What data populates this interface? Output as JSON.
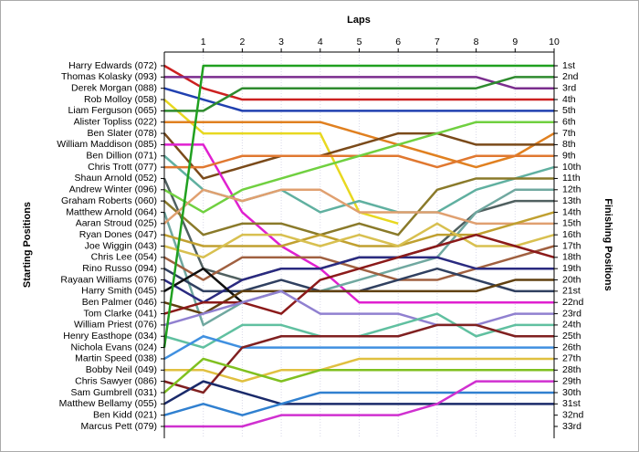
{
  "chart_data": {
    "type": "line",
    "title": "Laps",
    "ylabel": "Starting Positions",
    "y2label": "Finishing Positions",
    "x": [
      0,
      1,
      2,
      3,
      4,
      5,
      6,
      7,
      8,
      9,
      10
    ],
    "xlim": [
      0,
      10
    ],
    "xticks": [
      1,
      2,
      3,
      4,
      5,
      6,
      7,
      8,
      9,
      10
    ],
    "ylim": [
      1,
      33
    ],
    "inverted": true,
    "grid": true,
    "y2ticks": [
      {
        "value": 1,
        "label": "1st"
      },
      {
        "value": 2,
        "label": "2nd"
      },
      {
        "value": 3,
        "label": "3rd"
      },
      {
        "value": 4,
        "label": "4th"
      },
      {
        "value": 5,
        "label": "5th"
      },
      {
        "value": 6,
        "label": "6th"
      },
      {
        "value": 7,
        "label": "7th"
      },
      {
        "value": 8,
        "label": "8th"
      },
      {
        "value": 9,
        "label": "9th"
      },
      {
        "value": 10,
        "label": "10th"
      },
      {
        "value": 11,
        "label": "11th"
      },
      {
        "value": 12,
        "label": "12th"
      },
      {
        "value": 13,
        "label": "13th"
      },
      {
        "value": 14,
        "label": "14th"
      },
      {
        "value": 15,
        "label": "15th"
      },
      {
        "value": 16,
        "label": "16th"
      },
      {
        "value": 17,
        "label": "17th"
      },
      {
        "value": 18,
        "label": "18th"
      },
      {
        "value": 19,
        "label": "19th"
      },
      {
        "value": 20,
        "label": "20th"
      },
      {
        "value": 21,
        "label": "21st"
      },
      {
        "value": 22,
        "label": "22nd"
      },
      {
        "value": 23,
        "label": "23rd"
      },
      {
        "value": 24,
        "label": "24th"
      },
      {
        "value": 25,
        "label": "25th"
      },
      {
        "value": 26,
        "label": "26th"
      },
      {
        "value": 27,
        "label": "27th"
      },
      {
        "value": 28,
        "label": "28th"
      },
      {
        "value": 29,
        "label": "29th"
      },
      {
        "value": 30,
        "label": "30th"
      },
      {
        "value": 31,
        "label": "31st"
      },
      {
        "value": 32,
        "label": "32nd"
      },
      {
        "value": 33,
        "label": "33rd"
      }
    ],
    "series": [
      {
        "name": "Harry Edwards (072)",
        "color": "#cc2020",
        "values": [
          1,
          3,
          4,
          4,
          4,
          4,
          4,
          4,
          4,
          4,
          4
        ]
      },
      {
        "name": "Thomas Kolasky (093)",
        "color": "#7b2d8e",
        "values": [
          2,
          2,
          2,
          2,
          2,
          2,
          2,
          2,
          2,
          3,
          3
        ]
      },
      {
        "name": "Derek Morgan (088)",
        "color": "#2040b0",
        "values": [
          3,
          4,
          5,
          5,
          5,
          5,
          5,
          5,
          5,
          5,
          5
        ]
      },
      {
        "name": "Rob Molloy (058)",
        "color": "#e8d820",
        "values": [
          4,
          7,
          7,
          7,
          7,
          14,
          15,
          null,
          null,
          null,
          null
        ]
      },
      {
        "name": "Liam Ferguson (065)",
        "color": "#2e8b2e",
        "values": [
          5,
          5,
          3,
          3,
          3,
          3,
          3,
          3,
          3,
          2,
          2
        ]
      },
      {
        "name": "Alister Topliss (022)",
        "color": "#e08020",
        "values": [
          6,
          6,
          6,
          6,
          6,
          7,
          8,
          9,
          10,
          9,
          7
        ]
      },
      {
        "name": "Ben Slater (078)",
        "color": "#7a4a1a",
        "values": [
          7,
          11,
          10,
          9,
          9,
          8,
          7,
          7,
          8,
          8,
          8
        ]
      },
      {
        "name": "William Maddison (085)",
        "color": "#e020d0",
        "values": [
          8,
          8,
          14,
          17,
          19,
          22,
          22,
          22,
          22,
          22,
          22
        ]
      },
      {
        "name": "Ben Dillion (071)",
        "color": "#60b0a0",
        "values": [
          9,
          12,
          13,
          12,
          14,
          13,
          14,
          14,
          12,
          11,
          10
        ]
      },
      {
        "name": "Chris Trott (077)",
        "color": "#e07830",
        "values": [
          10,
          10,
          9,
          9,
          9,
          9,
          9,
          10,
          9,
          9,
          9
        ]
      },
      {
        "name": "Shaun Arnold (052)",
        "color": "#506060",
        "values": [
          11,
          19,
          20,
          19,
          19,
          18,
          18,
          17,
          14,
          13,
          13
        ]
      },
      {
        "name": "Andrew Winter (096)",
        "color": "#70d040",
        "values": [
          12,
          14,
          12,
          11,
          10,
          9,
          8,
          7,
          6,
          6,
          6
        ]
      },
      {
        "name": "Graham Roberts (060)",
        "color": "#8a7a2a",
        "values": [
          13,
          16,
          15,
          15,
          16,
          15,
          16,
          12,
          11,
          11,
          11
        ]
      },
      {
        "name": "Matthew Arnold (064)",
        "color": "#70a8a0",
        "values": [
          14,
          24,
          22,
          21,
          21,
          20,
          19,
          18,
          14,
          12,
          12
        ]
      },
      {
        "name": "Aaran Stroud (025)",
        "color": "#e0a070",
        "values": [
          15,
          12,
          13,
          12,
          12,
          14,
          14,
          14,
          15,
          15,
          15
        ]
      },
      {
        "name": "Ryan Dones (047)",
        "color": "#c0a030",
        "values": [
          16,
          17,
          17,
          17,
          16,
          17,
          17,
          16,
          16,
          15,
          14
        ]
      },
      {
        "name": "Joe Wiggin (043)",
        "color": "#d8c050",
        "values": [
          17,
          18,
          16,
          16,
          17,
          16,
          17,
          15,
          17,
          17,
          16
        ]
      },
      {
        "name": "Chris Lee (054)",
        "color": "#a06040",
        "values": [
          18,
          20,
          18,
          18,
          18,
          19,
          20,
          20,
          19,
          18,
          17
        ]
      },
      {
        "name": "Rino Russo (094)",
        "color": "#304060",
        "values": [
          19,
          21,
          21,
          20,
          21,
          21,
          20,
          19,
          20,
          21,
          21
        ]
      },
      {
        "name": "Rayaan Williams (076)",
        "color": "#2a2a80",
        "values": [
          20,
          22,
          20,
          19,
          19,
          18,
          18,
          18,
          19,
          19,
          19
        ]
      },
      {
        "name": "Harry Smith (045)",
        "color": "#101010",
        "values": [
          21,
          19,
          22,
          null,
          null,
          null,
          null,
          null,
          null,
          null,
          null
        ]
      },
      {
        "name": "Ben Palmer (046)",
        "color": "#604010",
        "values": [
          22,
          23,
          21,
          21,
          21,
          21,
          21,
          21,
          21,
          20,
          20
        ]
      },
      {
        "name": "Tom Clarke (041)",
        "color": "#8b1a1a",
        "values": [
          23,
          22,
          22,
          23,
          20,
          19,
          18,
          17,
          16,
          17,
          18
        ]
      },
      {
        "name": "William Priest (076)",
        "color": "#9080d0",
        "values": [
          24,
          23,
          22,
          21,
          23,
          23,
          23,
          24,
          24,
          23,
          23
        ]
      },
      {
        "name": "Henry Easthope (034)",
        "color": "#60c0a0",
        "values": [
          25,
          26,
          24,
          24,
          25,
          25,
          24,
          23,
          25,
          24,
          24
        ]
      },
      {
        "name": "Nichola Evans (024)",
        "color": "#20a020",
        "values": [
          26,
          1,
          1,
          1,
          1,
          1,
          1,
          1,
          1,
          1,
          1
        ]
      },
      {
        "name": "Martin Speed (038)",
        "color": "#4090e0",
        "values": [
          27,
          25,
          26,
          26,
          26,
          26,
          26,
          26,
          26,
          26,
          26
        ]
      },
      {
        "name": "Bobby Neil (049)",
        "color": "#e0c040",
        "values": [
          28,
          28,
          29,
          28,
          28,
          27,
          27,
          27,
          27,
          27,
          27
        ]
      },
      {
        "name": "Chris Sawyer (086)",
        "color": "#802020",
        "values": [
          29,
          30,
          26,
          25,
          25,
          25,
          25,
          24,
          24,
          25,
          25
        ]
      },
      {
        "name": "Sam Gumbrell (031)",
        "color": "#80c020",
        "values": [
          30,
          27,
          28,
          29,
          28,
          28,
          28,
          28,
          28,
          28,
          28
        ]
      },
      {
        "name": "Matthew Bellamy (055)",
        "color": "#1a2a6a",
        "values": [
          31,
          29,
          30,
          31,
          31,
          31,
          31,
          31,
          31,
          31,
          31
        ]
      },
      {
        "name": "Ben Kidd (021)",
        "color": "#3080d0",
        "values": [
          32,
          31,
          32,
          31,
          30,
          30,
          30,
          30,
          30,
          30,
          30
        ]
      },
      {
        "name": "Marcus Pett (079)",
        "color": "#d030d0",
        "values": [
          33,
          33,
          33,
          32,
          32,
          32,
          32,
          31,
          29,
          29,
          29
        ]
      }
    ]
  }
}
